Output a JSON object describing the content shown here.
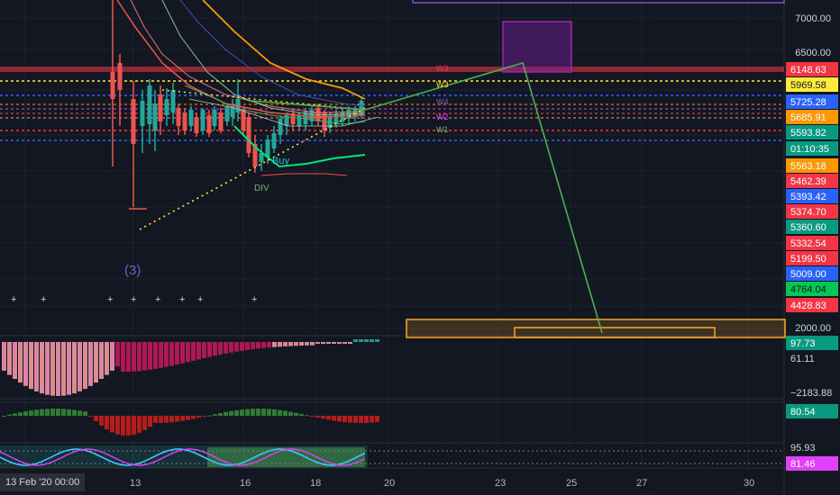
{
  "chart_data": {
    "type": "line",
    "price_levels": [
      {
        "value": "6148.63",
        "bg": "#f23645",
        "fg": "#ffffff"
      },
      {
        "value": "5969.58",
        "bg": "#ffeb3b",
        "fg": "#131722"
      },
      {
        "value": "5725.28",
        "bg": "#2962ff",
        "fg": "#ffffff"
      },
      {
        "value": "5685.91",
        "bg": "#ff9800",
        "fg": "#ffffff"
      },
      {
        "value": "5593.82",
        "bg": "#089981",
        "fg": "#ffffff"
      },
      {
        "value": "01:10:35",
        "bg": "#089981",
        "fg": "#ffffff"
      },
      {
        "value": "5563.18",
        "bg": "#ff9800",
        "fg": "#ffffff"
      },
      {
        "value": "5462.39",
        "bg": "#f23645",
        "fg": "#ffffff"
      },
      {
        "value": "5393.42",
        "bg": "#2962ff",
        "fg": "#ffffff"
      },
      {
        "value": "5374.70",
        "bg": "#f23645",
        "fg": "#ffffff"
      },
      {
        "value": "5360.60",
        "bg": "#089981",
        "fg": "#ffffff"
      },
      {
        "value": "5332.54",
        "bg": "#f23645",
        "fg": "#ffffff"
      },
      {
        "value": "5199.50",
        "bg": "#f23645",
        "fg": "#ffffff"
      },
      {
        "value": "5009.00",
        "bg": "#2962ff",
        "fg": "#ffffff"
      },
      {
        "value": "4764.04",
        "bg": "#00c853",
        "fg": "#131722"
      },
      {
        "value": "4428.83",
        "bg": "#f23645",
        "fg": "#ffffff"
      }
    ],
    "y_ticks": [
      "7000.00",
      "6500.00",
      "2000.00"
    ],
    "x_ticks": [
      "13",
      "16",
      "18",
      "20",
      "23",
      "25",
      "27",
      "30"
    ],
    "wave_labels": [
      "W3",
      "W3",
      "W4",
      "W2",
      "W1"
    ],
    "annotations": [
      "(3)",
      "Buy",
      "DIV"
    ],
    "pane_labels": [
      {
        "value": "97.73",
        "bg": "#089981",
        "fg": "#ffffff"
      },
      {
        "value": "61.11",
        "bg": "#131722",
        "fg": "#d1d4dc"
      },
      {
        "value": "−2183.88",
        "bg": "#131722",
        "fg": "#d1d4dc"
      },
      {
        "value": "80.54",
        "bg": "#089981",
        "fg": "#ffffff"
      },
      {
        "value": "95.93",
        "bg": "#131722",
        "fg": "#d1d4dc"
      },
      {
        "value": "81.46",
        "bg": "#e040fb",
        "fg": "#ffffff"
      }
    ],
    "crosshair_date": "13 Feb '20   00:00",
    "colors": {
      "background": "#131722",
      "up": "#26a69a",
      "down": "#ef5350",
      "projection": "#4caf50",
      "ema_orange": "#ff9800",
      "purple_box": "#7b1fa2",
      "orange_box": "#f9a825"
    }
  }
}
